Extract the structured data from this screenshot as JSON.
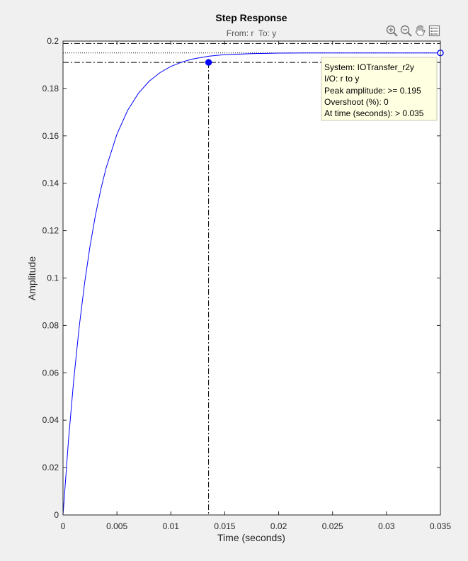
{
  "chart_data": {
    "type": "line",
    "title": "Step Response",
    "subtitle": "From: r  To: y",
    "xlabel": "Time (seconds)",
    "ylabel": "Amplitude",
    "xlim": [
      0,
      0.035
    ],
    "ylim": [
      0,
      0.2
    ],
    "xticks": [
      0,
      0.005,
      0.01,
      0.015,
      0.02,
      0.025,
      0.03,
      0.035
    ],
    "xtick_labels": [
      "0",
      "0.005",
      "0.01",
      "0.015",
      "0.02",
      "0.025",
      "0.03",
      "0.035"
    ],
    "yticks": [
      0,
      0.02,
      0.04,
      0.06,
      0.08,
      0.1,
      0.12,
      0.14,
      0.16,
      0.18,
      0.2
    ],
    "ytick_labels": [
      "0",
      "0.02",
      "0.04",
      "0.06",
      "0.08",
      "0.1",
      "0.12",
      "0.14",
      "0.16",
      "0.18",
      "0.2"
    ],
    "grid": false,
    "series": [
      {
        "x": [
          0,
          0.0005,
          0.001,
          0.0015,
          0.002,
          0.0025,
          0.003,
          0.0035,
          0.004,
          0.005,
          0.006,
          0.007,
          0.008,
          0.009,
          0.01,
          0.011,
          0.012,
          0.0135,
          0.015,
          0.0175,
          0.02,
          0.0225,
          0.025,
          0.0275,
          0.03,
          0.0325,
          0.035
        ],
        "y": [
          0,
          0.0311,
          0.0573,
          0.0793,
          0.0978,
          0.1133,
          0.1263,
          0.1373,
          0.1465,
          0.1607,
          0.1708,
          0.178,
          0.1831,
          0.1867,
          0.1893,
          0.1911,
          0.1924,
          0.1936,
          0.1943,
          0.1947,
          0.1949,
          0.195,
          0.195,
          0.195,
          0.195,
          0.195,
          0.195
        ],
        "color": "#0000ff"
      }
    ],
    "reference_lines": {
      "steady_state": 0.195,
      "settling_band_upper": 0.199,
      "settling_band_lower": 0.191,
      "settling_time": 0.0135
    },
    "markers": [
      {
        "x": 0.0135,
        "y": 0.191,
        "style": "filled"
      },
      {
        "x": 0.035,
        "y": 0.195,
        "style": "open"
      }
    ],
    "datatip": {
      "lines": [
        "System: IOTransfer_r2y",
        "I/O: r to y",
        "Peak amplitude: >= 0.195",
        "Overshoot (%): 0",
        "At time (seconds): > 0.035"
      ]
    }
  },
  "toolbar": {
    "icons": [
      "zoom-in-icon",
      "zoom-out-icon",
      "pan-hand-icon",
      "data-cursor-icon"
    ]
  },
  "colors": {
    "figure_bg": "#f0f0f0",
    "axes_bg": "#ffffff",
    "line": "#0000ff",
    "datatip_bg": "#ffffe1"
  }
}
